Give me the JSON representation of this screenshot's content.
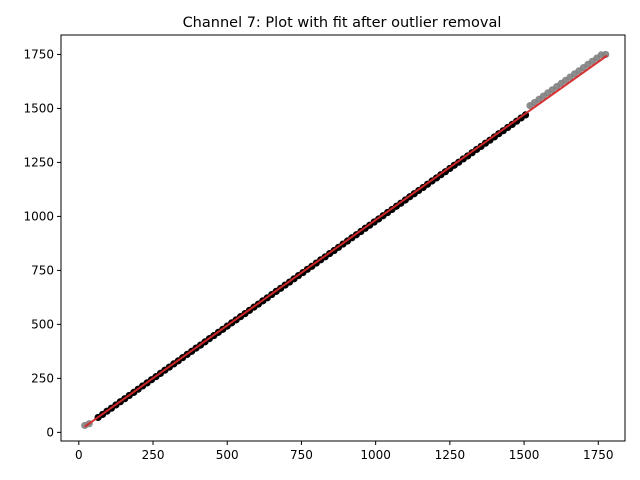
{
  "chart_data": {
    "type": "scatter",
    "title": "Channel 7: Plot with fit after outlier removal",
    "xlabel": "",
    "ylabel": "",
    "xlim": [
      -60,
      1840
    ],
    "ylim": [
      -40,
      1840
    ],
    "xticks": [
      0,
      250,
      500,
      750,
      1000,
      1250,
      1500,
      1750
    ],
    "yticks": [
      0,
      250,
      500,
      750,
      1000,
      1250,
      1500,
      1750
    ],
    "xtick_labels": [
      "0",
      "250",
      "500",
      "750",
      "1000",
      "1250",
      "1500",
      "1750"
    ],
    "ytick_labels": [
      "0",
      "250",
      "500",
      "750",
      "1000",
      "1250",
      "1500",
      "1750"
    ],
    "grid": false,
    "legend": "none",
    "series": [
      {
        "role": "kept",
        "color": "#000000",
        "x": [
          65,
          80,
          95,
          110,
          125,
          140,
          155,
          170,
          185,
          200,
          215,
          230,
          245,
          260,
          275,
          290,
          305,
          320,
          335,
          350,
          365,
          380,
          395,
          410,
          425,
          440,
          455,
          470,
          485,
          500,
          515,
          530,
          545,
          560,
          575,
          590,
          605,
          620,
          635,
          650,
          665,
          680,
          695,
          710,
          725,
          740,
          755,
          770,
          785,
          800,
          815,
          830,
          845,
          860,
          875,
          890,
          905,
          920,
          935,
          950,
          965,
          980,
          995,
          1010,
          1025,
          1040,
          1055,
          1070,
          1085,
          1100,
          1115,
          1130,
          1145,
          1160,
          1175,
          1190,
          1205,
          1220,
          1235,
          1250,
          1265,
          1280,
          1295,
          1310,
          1325,
          1340,
          1355,
          1370,
          1385,
          1400,
          1415,
          1430,
          1445,
          1460,
          1475,
          1490,
          1505
        ],
        "y": [
          69,
          83,
          98,
          112,
          127,
          142,
          156,
          171,
          185,
          200,
          215,
          229,
          244,
          258,
          273,
          288,
          302,
          317,
          331,
          346,
          361,
          375,
          390,
          404,
          419,
          434,
          448,
          463,
          477,
          492,
          507,
          521,
          536,
          550,
          565,
          580,
          594,
          609,
          623,
          638,
          653,
          667,
          682,
          696,
          711,
          726,
          740,
          755,
          769,
          784,
          799,
          813,
          828,
          842,
          857,
          872,
          886,
          901,
          915,
          930,
          945,
          959,
          974,
          988,
          1003,
          1018,
          1032,
          1047,
          1061,
          1076,
          1091,
          1105,
          1120,
          1134,
          1149,
          1164,
          1178,
          1193,
          1207,
          1222,
          1237,
          1251,
          1266,
          1280,
          1295,
          1310,
          1324,
          1339,
          1353,
          1368,
          1383,
          1397,
          1412,
          1426,
          1441,
          1456,
          1470
        ]
      },
      {
        "role": "removed-outliers",
        "color": "#808080",
        "x": [
          20,
          35,
          1520,
          1535,
          1550,
          1565,
          1580,
          1595,
          1610,
          1625,
          1640,
          1655,
          1670,
          1685,
          1700,
          1715,
          1730,
          1745,
          1760,
          1775
        ],
        "y": [
          32,
          40,
          1513,
          1527,
          1542,
          1557,
          1572,
          1586,
          1601,
          1616,
          1630,
          1645,
          1660,
          1674,
          1689,
          1704,
          1718,
          1733,
          1748,
          1750
        ]
      }
    ],
    "fit": {
      "type": "line",
      "color": "#d62728",
      "x": [
        20,
        1780
      ],
      "y": [
        26,
        1745
      ]
    }
  }
}
